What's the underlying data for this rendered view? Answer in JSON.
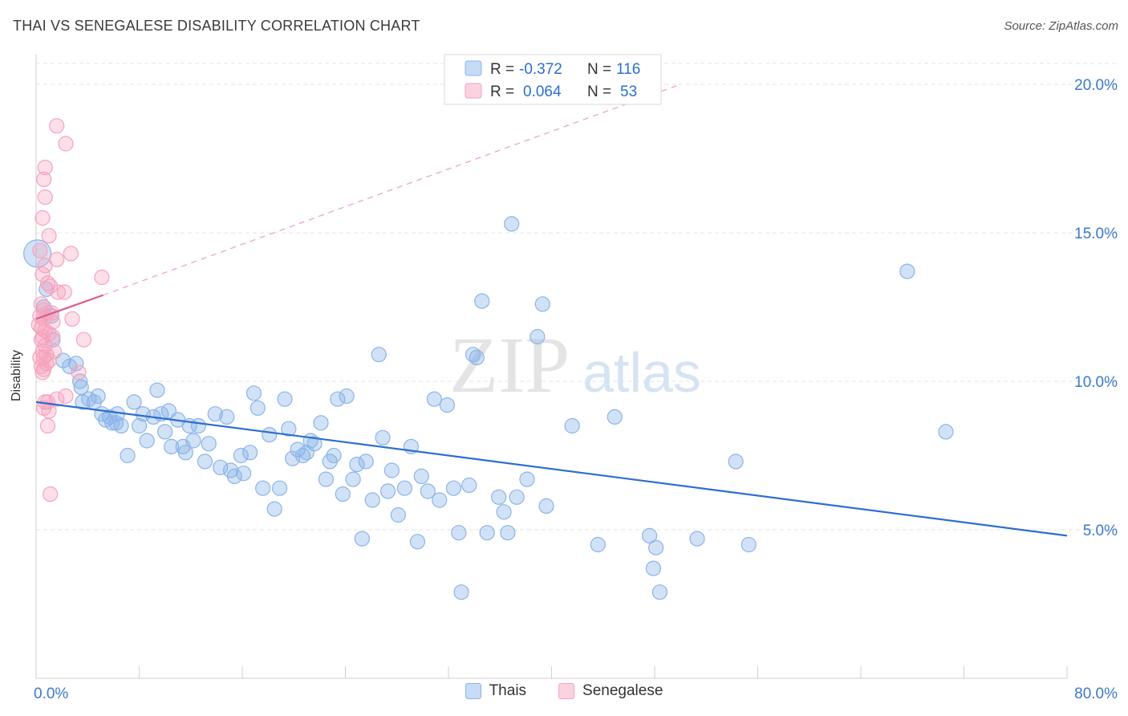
{
  "title": "THAI VS SENEGALESE DISABILITY CORRELATION CHART",
  "source": "Source: ZipAtlas.com",
  "watermark": {
    "zip": "ZIP",
    "atlas": "atlas"
  },
  "chart_data": {
    "type": "scatter",
    "title": "THAI VS SENEGALESE DISABILITY CORRELATION CHART",
    "xlabel": "",
    "ylabel": "Disability",
    "xlim": [
      0,
      80
    ],
    "ylim": [
      0,
      21
    ],
    "x_tick_labels": [
      "0.0%",
      "80.0%"
    ],
    "y_ticks": [
      5,
      10,
      15,
      20
    ],
    "y_tick_labels": [
      "5.0%",
      "10.0%",
      "15.0%",
      "20.0%"
    ],
    "grid": true,
    "legend_placement": "top-center",
    "legend": {
      "rows": [
        {
          "r_label": "R =",
          "r_value": "-0.372",
          "n_label": "N =",
          "n_value": "116"
        },
        {
          "r_label": "R =",
          "r_value": "0.064",
          "n_label": "N =",
          "n_value": "53"
        }
      ]
    },
    "series": [
      {
        "name": "Thais",
        "color": "#8ab4e8",
        "line_color": "#2b6fce",
        "trend": {
          "x": [
            0,
            80
          ],
          "y": [
            9.3,
            4.8
          ]
        },
        "points": [
          [
            0.1,
            14.3
          ],
          [
            0.8,
            13.1
          ],
          [
            1.2,
            12.2
          ],
          [
            1.3,
            11.4
          ],
          [
            2.1,
            10.7
          ],
          [
            3.1,
            10.6
          ],
          [
            3.4,
            10.0
          ],
          [
            3.5,
            9.8
          ],
          [
            3.6,
            9.3
          ],
          [
            4.1,
            9.4
          ],
          [
            4.5,
            9.3
          ],
          [
            4.8,
            9.5
          ],
          [
            5.1,
            8.9
          ],
          [
            5.4,
            8.7
          ],
          [
            5.7,
            8.8
          ],
          [
            6.2,
            8.6
          ],
          [
            6.3,
            8.9
          ],
          [
            6.6,
            8.5
          ],
          [
            7.1,
            7.5
          ],
          [
            7.6,
            9.3
          ],
          [
            8.0,
            8.5
          ],
          [
            8.3,
            8.9
          ],
          [
            8.6,
            8.0
          ],
          [
            9.1,
            8.8
          ],
          [
            9.4,
            9.7
          ],
          [
            9.7,
            8.9
          ],
          [
            10.0,
            8.3
          ],
          [
            10.3,
            9.0
          ],
          [
            10.5,
            7.8
          ],
          [
            11.0,
            8.7
          ],
          [
            11.4,
            7.8
          ],
          [
            11.6,
            7.6
          ],
          [
            11.9,
            8.5
          ],
          [
            12.2,
            8.0
          ],
          [
            12.6,
            8.5
          ],
          [
            13.1,
            7.3
          ],
          [
            13.4,
            7.9
          ],
          [
            13.9,
            8.9
          ],
          [
            14.3,
            7.1
          ],
          [
            14.8,
            8.8
          ],
          [
            15.1,
            7.0
          ],
          [
            15.4,
            6.8
          ],
          [
            15.9,
            7.5
          ],
          [
            16.1,
            6.9
          ],
          [
            16.6,
            7.6
          ],
          [
            16.9,
            9.6
          ],
          [
            17.2,
            9.1
          ],
          [
            17.6,
            6.4
          ],
          [
            18.1,
            8.2
          ],
          [
            18.5,
            5.7
          ],
          [
            18.9,
            6.4
          ],
          [
            19.3,
            9.4
          ],
          [
            19.6,
            8.4
          ],
          [
            19.9,
            7.4
          ],
          [
            20.3,
            7.7
          ],
          [
            20.7,
            7.5
          ],
          [
            21.0,
            7.6
          ],
          [
            21.3,
            8.0
          ],
          [
            21.6,
            7.9
          ],
          [
            22.1,
            8.6
          ],
          [
            22.5,
            6.7
          ],
          [
            22.8,
            7.3
          ],
          [
            23.1,
            7.5
          ],
          [
            23.4,
            9.4
          ],
          [
            23.8,
            6.2
          ],
          [
            24.1,
            9.5
          ],
          [
            24.6,
            6.7
          ],
          [
            24.9,
            7.2
          ],
          [
            25.3,
            4.7
          ],
          [
            25.6,
            7.3
          ],
          [
            26.1,
            6.0
          ],
          [
            26.6,
            10.9
          ],
          [
            26.9,
            8.1
          ],
          [
            27.3,
            6.3
          ],
          [
            27.6,
            7.0
          ],
          [
            28.1,
            5.5
          ],
          [
            28.6,
            6.4
          ],
          [
            29.1,
            7.8
          ],
          [
            29.6,
            4.6
          ],
          [
            29.9,
            6.8
          ],
          [
            30.4,
            6.3
          ],
          [
            30.9,
            9.4
          ],
          [
            31.3,
            6.0
          ],
          [
            31.9,
            9.2
          ],
          [
            32.4,
            6.4
          ],
          [
            32.8,
            4.9
          ],
          [
            33.0,
            2.9
          ],
          [
            33.6,
            6.5
          ],
          [
            33.9,
            10.9
          ],
          [
            34.2,
            10.8
          ],
          [
            34.6,
            12.7
          ],
          [
            35.0,
            4.9
          ],
          [
            35.9,
            6.1
          ],
          [
            36.3,
            5.6
          ],
          [
            36.6,
            4.9
          ],
          [
            36.9,
            15.3
          ],
          [
            37.3,
            6.1
          ],
          [
            38.1,
            6.7
          ],
          [
            38.9,
            11.5
          ],
          [
            39.3,
            12.6
          ],
          [
            39.6,
            5.8
          ],
          [
            41.6,
            8.5
          ],
          [
            43.6,
            4.5
          ],
          [
            44.9,
            8.8
          ],
          [
            47.6,
            4.8
          ],
          [
            47.9,
            3.7
          ],
          [
            48.1,
            4.4
          ],
          [
            48.4,
            2.9
          ],
          [
            51.3,
            4.7
          ],
          [
            54.3,
            7.3
          ],
          [
            55.3,
            4.5
          ],
          [
            67.6,
            13.7
          ],
          [
            70.6,
            8.3
          ],
          [
            0.6,
            12.5
          ],
          [
            2.6,
            10.5
          ],
          [
            5.9,
            8.6
          ]
        ]
      },
      {
        "name": "Senegalese",
        "color": "#f5a3bd",
        "line_color": "#e05a87",
        "trend": {
          "x": [
            0,
            5.2
          ],
          "y": [
            12.1,
            12.9
          ]
        },
        "trend_extension": {
          "x": [
            5.2,
            50
          ],
          "y": [
            12.9,
            20.0
          ]
        },
        "points": [
          [
            1.6,
            18.6
          ],
          [
            2.3,
            18.0
          ],
          [
            0.7,
            17.2
          ],
          [
            0.6,
            16.8
          ],
          [
            0.7,
            16.2
          ],
          [
            0.5,
            15.5
          ],
          [
            1.0,
            14.9
          ],
          [
            0.3,
            14.4
          ],
          [
            2.7,
            14.3
          ],
          [
            1.6,
            14.1
          ],
          [
            0.7,
            13.9
          ],
          [
            0.5,
            13.6
          ],
          [
            5.1,
            13.5
          ],
          [
            0.9,
            13.3
          ],
          [
            1.1,
            13.2
          ],
          [
            1.7,
            13.0
          ],
          [
            2.2,
            13.0
          ],
          [
            0.4,
            12.6
          ],
          [
            0.6,
            12.4
          ],
          [
            0.9,
            12.3
          ],
          [
            1.2,
            12.3
          ],
          [
            0.3,
            12.2
          ],
          [
            0.6,
            12.1
          ],
          [
            2.8,
            12.1
          ],
          [
            1.3,
            12.0
          ],
          [
            0.4,
            11.8
          ],
          [
            0.7,
            11.7
          ],
          [
            1.0,
            11.6
          ],
          [
            0.5,
            11.5
          ],
          [
            1.3,
            11.5
          ],
          [
            0.4,
            11.4
          ],
          [
            3.7,
            11.4
          ],
          [
            0.7,
            11.2
          ],
          [
            1.4,
            11.0
          ],
          [
            0.5,
            11.0
          ],
          [
            0.8,
            10.9
          ],
          [
            0.3,
            10.8
          ],
          [
            0.6,
            10.8
          ],
          [
            1.0,
            10.7
          ],
          [
            0.8,
            10.6
          ],
          [
            0.4,
            10.5
          ],
          [
            0.6,
            10.4
          ],
          [
            3.3,
            10.3
          ],
          [
            0.5,
            10.3
          ],
          [
            1.6,
            9.4
          ],
          [
            2.3,
            9.5
          ],
          [
            0.7,
            9.3
          ],
          [
            0.9,
            9.3
          ],
          [
            0.6,
            9.1
          ],
          [
            1.0,
            9.0
          ],
          [
            0.9,
            8.5
          ],
          [
            1.1,
            6.2
          ],
          [
            0.2,
            11.9
          ]
        ]
      }
    ]
  }
}
